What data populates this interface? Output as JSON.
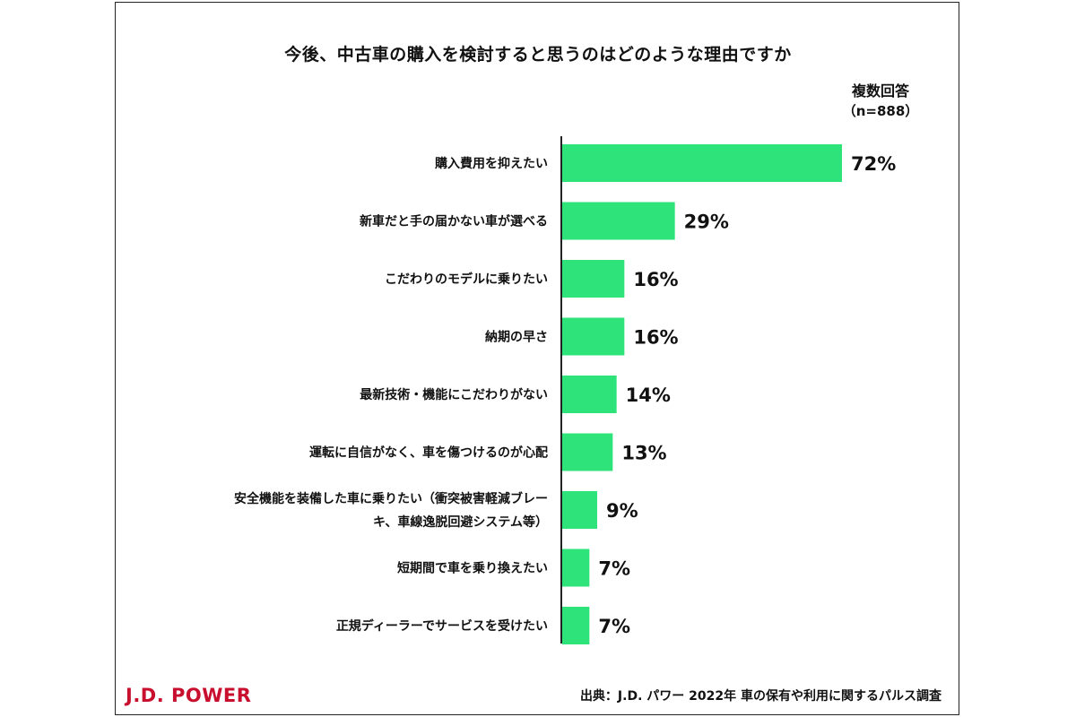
{
  "chart_data": {
    "type": "bar",
    "orientation": "horizontal",
    "title": "今後、中古車の購入を検討すると思うのはどのような理由ですか",
    "subtitle": "複数回答",
    "sample": "（n=888）",
    "categories": [
      [
        "購入費用を抑えたい"
      ],
      [
        "新車だと手の届かない車が選べる"
      ],
      [
        "こだわりのモデルに乗りたい"
      ],
      [
        "納期の早さ"
      ],
      [
        "最新技術・機能にこだわりがない"
      ],
      [
        "運転に自信がなく、車を傷つけるのが心配"
      ],
      [
        "安全機能を装備した車に乗りたい（衝突被害軽減ブレー",
        "キ、車線逸脱回避システム等）"
      ],
      [
        "短期間で車を乗り換えたい"
      ],
      [
        "正規ディーラーでサービスを受けたい"
      ]
    ],
    "values": [
      72,
      29,
      16,
      16,
      14,
      13,
      9,
      7,
      7
    ],
    "value_labels": [
      "72%",
      "29%",
      "16%",
      "16%",
      "14%",
      "13%",
      "9%",
      "7%",
      "7%"
    ],
    "bar_color": "#2ee47a",
    "axis_color": "#222222",
    "xlim": [
      0,
      100
    ],
    "grid": false,
    "legend": "none"
  },
  "footer": {
    "brand": "J.D. POWER",
    "brand_color": "#c8102e",
    "source": "出典：J.D. パワー 2022年 車の保有や利用に関するパルス調査"
  }
}
